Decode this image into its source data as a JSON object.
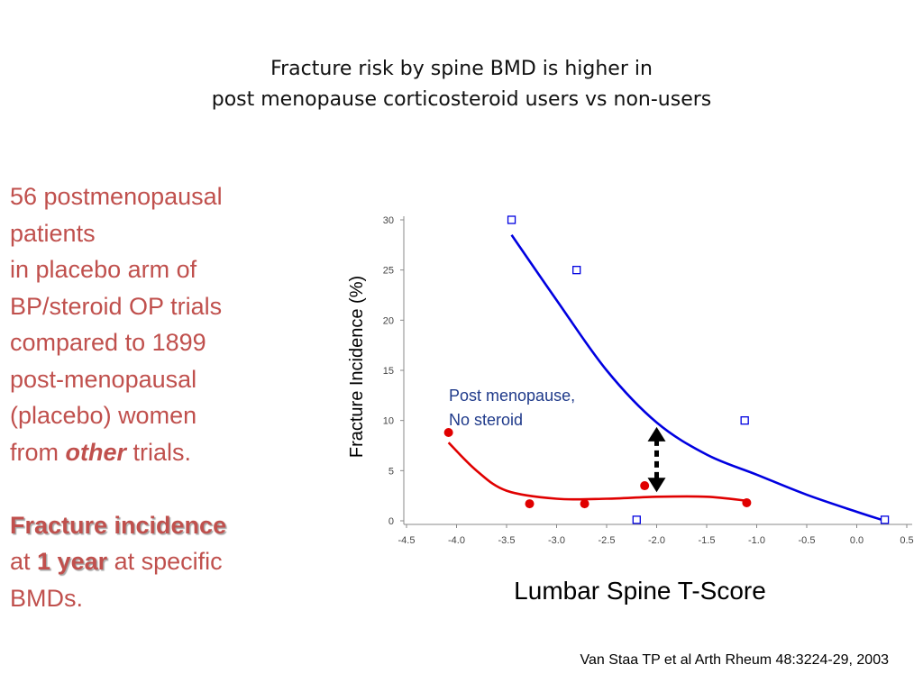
{
  "slide": {
    "title_line1": "Fracture risk by spine BMD is higher in",
    "title_line2": "post menopause corticosteroid users vs non-users",
    "left_text": {
      "l1": "56 postmenopausal",
      "l2": "patients",
      "l3": "in placebo arm of",
      "l4": "BP/steroid OP trials",
      "l5": "compared to 1899",
      "l6": "post-menopausal",
      "l7": "(placebo) women",
      "l8_pre": "from ",
      "l8_em": "other",
      "l8_post": " trials.",
      "l9": "Fracture incidence",
      "l10_pre": "at ",
      "l10_em": "1 year",
      "l10_post": " at specific",
      "l11": "BMDs."
    },
    "citation": "Van Staa TP et al Arth Rheum 48:3224-29, 2003",
    "colors": {
      "left_text": "#c0504d",
      "no_steroid": "#0000e0",
      "steroid": "#e00000",
      "annotation": "#1f3a8a"
    }
  },
  "chart_data": {
    "type": "scatter",
    "xlabel": "Lumbar Spine T-Score",
    "ylabel": "Fracture Incidence (%)",
    "xlim": [
      -4.5,
      0.5
    ],
    "ylim": [
      0,
      30
    ],
    "x_ticks": [
      "-4.5",
      "-4.0",
      "-3.5",
      "-3.0",
      "-2.5",
      "-2.0",
      "-1.5",
      "-1.0",
      "-0.5",
      "0.0",
      "0.5"
    ],
    "y_ticks": [
      "0",
      "5",
      "10",
      "15",
      "20",
      "25",
      "30"
    ],
    "grid": false,
    "annotation": {
      "line1": "Post menopause,",
      "line2": "No steroid",
      "arrow": "double-headed dotted arrow between curves at x = -2.0"
    },
    "series": [
      {
        "name": "Post menopause, No steroid",
        "marker": "hollow-square",
        "color": "#0000e0",
        "points": [
          {
            "x": -3.45,
            "y": 30
          },
          {
            "x": -2.8,
            "y": 25
          },
          {
            "x": -1.12,
            "y": 10
          },
          {
            "x": -2.2,
            "y": 0.1
          },
          {
            "x": 0.28,
            "y": 0.1
          }
        ],
        "fit": [
          {
            "x": -3.45,
            "y": 28.5
          },
          {
            "x": -3.0,
            "y": 22.0
          },
          {
            "x": -2.5,
            "y": 15.0
          },
          {
            "x": -2.0,
            "y": 9.8
          },
          {
            "x": -1.5,
            "y": 6.6
          },
          {
            "x": -1.0,
            "y": 4.6
          },
          {
            "x": -0.5,
            "y": 2.6
          },
          {
            "x": 0.0,
            "y": 0.9
          },
          {
            "x": 0.25,
            "y": 0.1
          }
        ]
      },
      {
        "marker": "filled-circle",
        "color": "#e00000",
        "points": [
          {
            "x": -4.08,
            "y": 8.8
          },
          {
            "x": -3.27,
            "y": 1.7
          },
          {
            "x": -2.72,
            "y": 1.7
          },
          {
            "x": -2.12,
            "y": 3.5
          },
          {
            "x": -1.1,
            "y": 1.8
          }
        ],
        "fit": [
          {
            "x": -4.08,
            "y": 7.8
          },
          {
            "x": -3.8,
            "y": 5.0
          },
          {
            "x": -3.5,
            "y": 3.0
          },
          {
            "x": -3.0,
            "y": 2.2
          },
          {
            "x": -2.5,
            "y": 2.2
          },
          {
            "x": -2.0,
            "y": 2.4
          },
          {
            "x": -1.5,
            "y": 2.4
          },
          {
            "x": -1.1,
            "y": 2.0
          }
        ]
      }
    ]
  }
}
